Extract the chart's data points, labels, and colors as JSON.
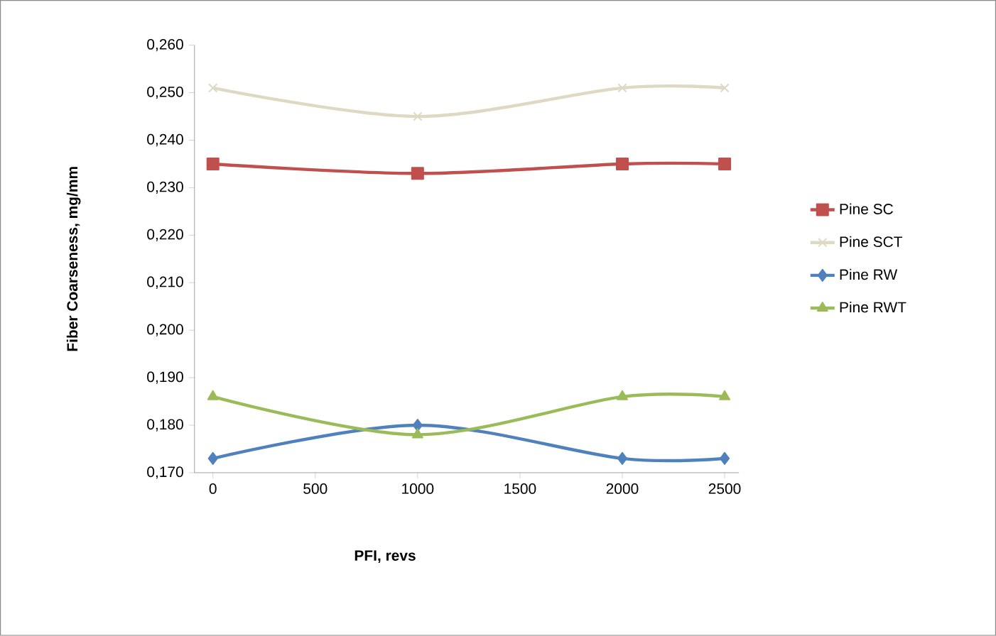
{
  "chart_data": {
    "type": "line",
    "xlabel": "PFI, revs",
    "ylabel": "Fiber Coarseness, mg/mm",
    "x": [
      0,
      1000,
      2000,
      2500
    ],
    "series": [
      {
        "name": "Pine SC",
        "color": "#c0504d",
        "marker": "square",
        "values": [
          0.235,
          0.233,
          0.235,
          0.235
        ]
      },
      {
        "name": "Pine SCT",
        "color": "#ddd9c3",
        "marker": "cross",
        "values": [
          0.251,
          0.245,
          0.251,
          0.251
        ]
      },
      {
        "name": "Pine RW",
        "color": "#4f81bd",
        "marker": "diamond",
        "values": [
          0.173,
          0.18,
          0.173,
          0.173
        ]
      },
      {
        "name": "Pine RWT",
        "color": "#9bbb59",
        "marker": "triangle",
        "values": [
          0.186,
          0.178,
          0.186,
          0.186
        ]
      }
    ],
    "xlim": [
      -90,
      2570
    ],
    "xticks": [
      0,
      500,
      1000,
      1500,
      2000,
      2500
    ],
    "ylim": [
      0.17,
      0.26
    ],
    "yticks": [
      {
        "value": 0.17,
        "label": "0,170"
      },
      {
        "value": 0.18,
        "label": "0,180"
      },
      {
        "value": 0.19,
        "label": "0,190"
      },
      {
        "value": 0.2,
        "label": "0,200"
      },
      {
        "value": 0.21,
        "label": "0,210"
      },
      {
        "value": 0.22,
        "label": "0,220"
      },
      {
        "value": 0.23,
        "label": "0,230"
      },
      {
        "value": 0.24,
        "label": "0,240"
      },
      {
        "value": 0.25,
        "label": "0,250"
      },
      {
        "value": 0.26,
        "label": "0,260"
      }
    ],
    "grid": false,
    "legend": "right",
    "line_style": "solid"
  }
}
